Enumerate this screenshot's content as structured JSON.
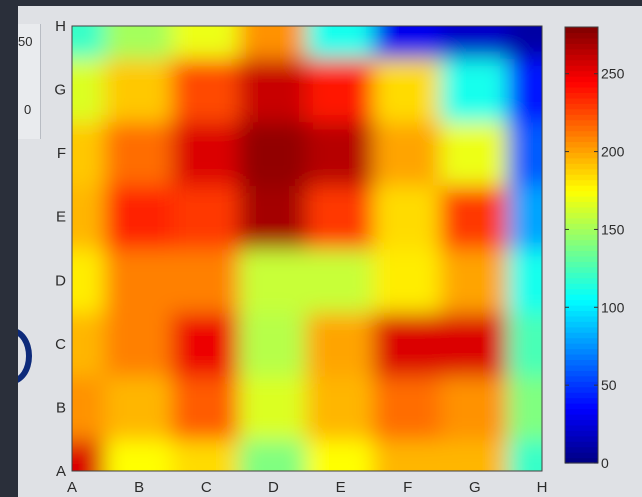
{
  "left_panel": {
    "labels": [
      "50",
      "0"
    ]
  },
  "chart_data": {
    "type": "heatmap",
    "x_categories": [
      "A",
      "B",
      "C",
      "D",
      "E",
      "F",
      "G",
      "H"
    ],
    "y_categories": [
      "A",
      "B",
      "C",
      "D",
      "E",
      "F",
      "G",
      "H"
    ],
    "values": [
      [
        255,
        175,
        185,
        140,
        175,
        195,
        195,
        120
      ],
      [
        205,
        195,
        220,
        165,
        195,
        215,
        205,
        140
      ],
      [
        195,
        210,
        250,
        155,
        200,
        255,
        255,
        125
      ],
      [
        180,
        210,
        210,
        160,
        160,
        180,
        200,
        110
      ],
      [
        195,
        235,
        230,
        270,
        230,
        185,
        230,
        80
      ],
      [
        190,
        215,
        255,
        275,
        265,
        200,
        170,
        60
      ],
      [
        165,
        190,
        225,
        260,
        240,
        185,
        110,
        40
      ],
      [
        120,
        150,
        170,
        205,
        110,
        30,
        20,
        10
      ]
    ],
    "colorbar": {
      "min": 0,
      "max": 280,
      "ticks": [
        0,
        50,
        100,
        150,
        200,
        250
      ]
    },
    "colormap": "jet",
    "title": "",
    "xlabel": "",
    "ylabel": ""
  }
}
